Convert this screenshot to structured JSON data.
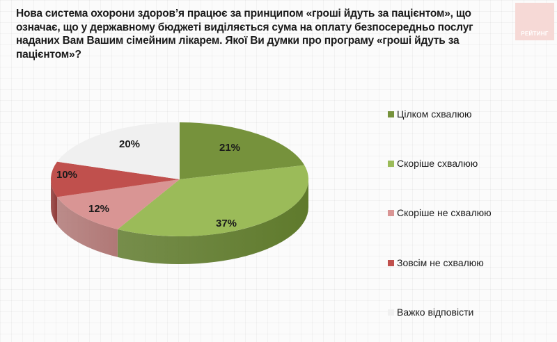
{
  "title": "Нова система охорони здоров’я працює за принципом «гроші йдуть за пацієнтом», що означає, що у державному бюджеті виділяється сума на оплату безпосередньо послуг наданих Вам Вашим сімейним лікарем. Якої Ви думки про програму «гроші йдуть за пацієнтом»?",
  "logo": {
    "text": "РЕЙТИНГ",
    "color": "#f6d9d6"
  },
  "labels": [
    "21%",
    "37%",
    "12%",
    "10%",
    "20%"
  ],
  "legend": [
    {
      "label": "Цілком схвалюю",
      "color": "#76923c"
    },
    {
      "label": "Скоріше схвалюю",
      "color": "#9bbb59"
    },
    {
      "label": "Скоріше не схвалюю",
      "color": "#d99594"
    },
    {
      "label": "Зовсім не схвалюю",
      "color": "#c0504d"
    },
    {
      "label": "Важко відповісти",
      "color": "#f0f0f0"
    }
  ],
  "chart_data": {
    "type": "pie",
    "title": "Нова система охорони здоров’я працює за принципом «гроші йдуть за пацієнтом», що означає, що у державному бюджеті виділяється сума на оплату безпосередньо послуг наданих Вам Вашим сімейним лікарем. Якої Ви думки про програму «гроші йдуть за пацієнтом»?",
    "categories": [
      "Цілком схвалюю",
      "Скоріше схвалюю",
      "Скоріше не схвалюю",
      "Зовсім не схвалюю",
      "Важко відповісти"
    ],
    "values": [
      21,
      37,
      12,
      10,
      20
    ],
    "unit": "%",
    "colors": [
      "#76923c",
      "#9bbb59",
      "#d99594",
      "#c0504d",
      "#f0f0f0"
    ],
    "style": "3d",
    "start_angle": "12 o'clock, clockwise",
    "legend_position": "right"
  }
}
